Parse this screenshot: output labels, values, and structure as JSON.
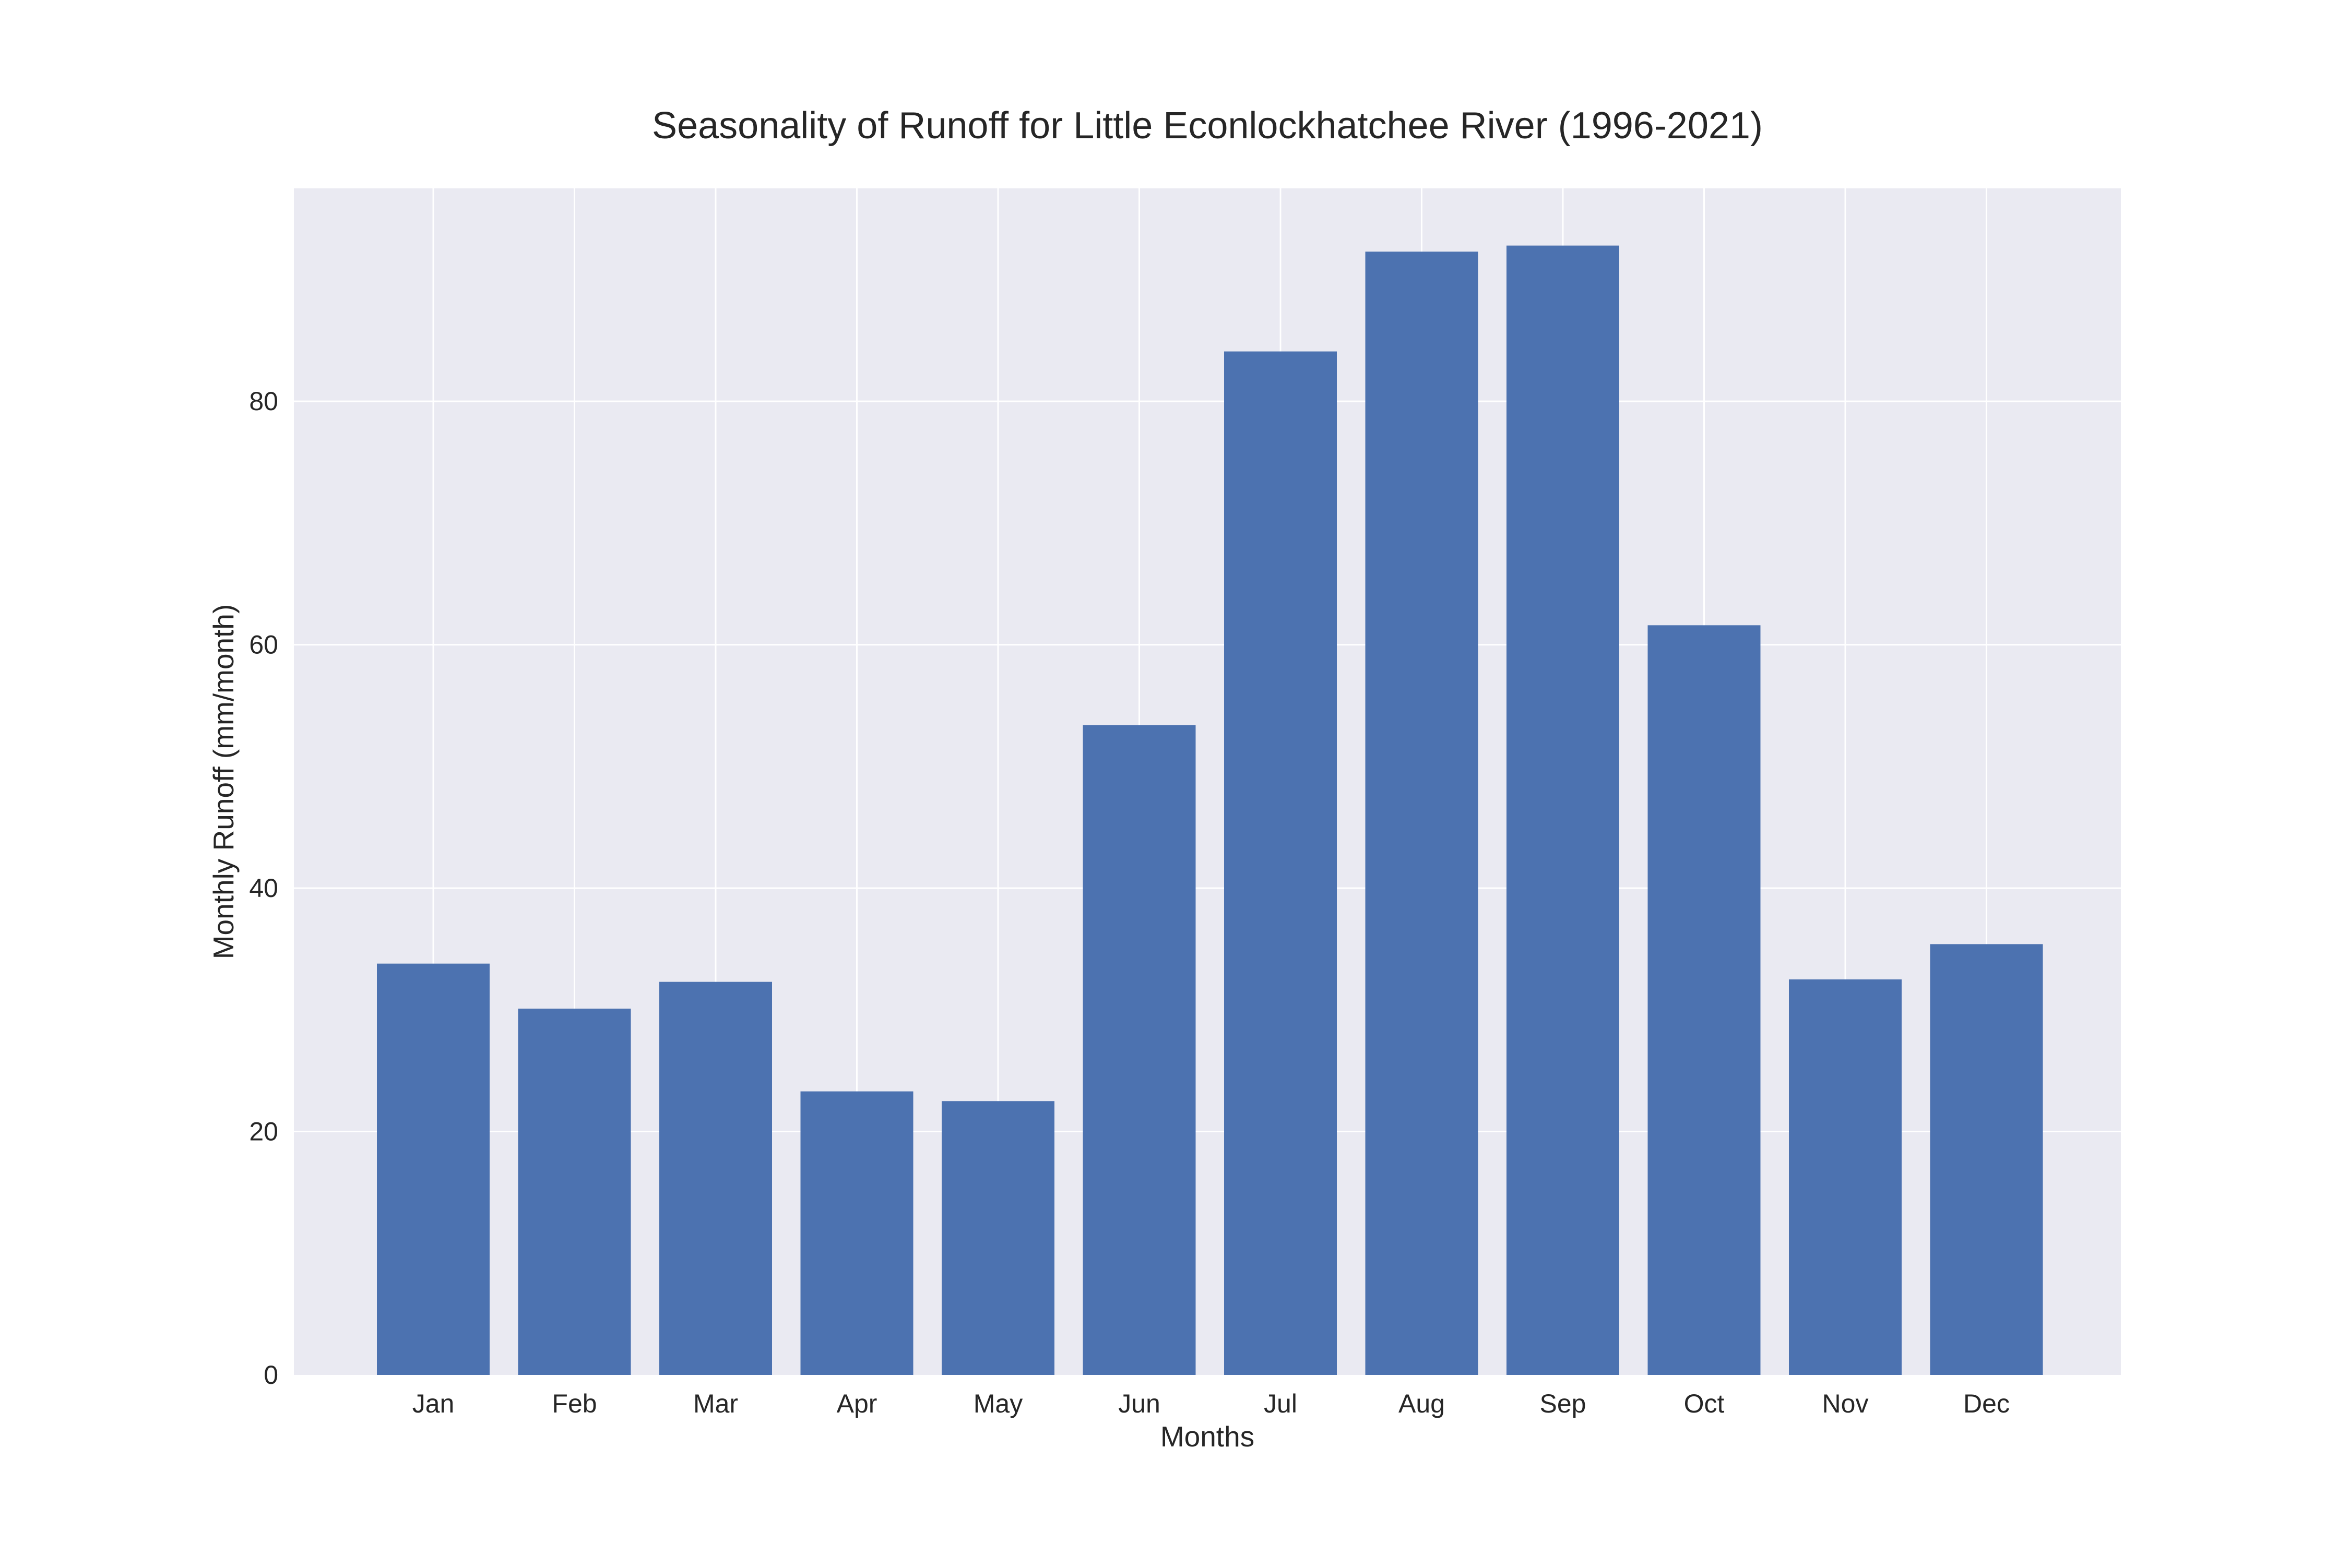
{
  "chart_data": {
    "type": "bar",
    "title": "Seasonality of Runoff for Little Econlockhatchee River (1996-2021)",
    "xlabel": "Months",
    "ylabel": "Monthly Runoff (mm/month)",
    "categories": [
      "Jan",
      "Feb",
      "Mar",
      "Apr",
      "May",
      "Jun",
      "Jul",
      "Aug",
      "Sep",
      "Oct",
      "Nov",
      "Dec"
    ],
    "values": [
      33.8,
      30.1,
      32.3,
      23.3,
      22.5,
      53.4,
      84.1,
      92.3,
      92.8,
      61.6,
      32.5,
      35.4
    ],
    "ylim": [
      0,
      97.5
    ],
    "yticks": [
      0,
      20,
      40,
      60,
      80
    ],
    "grid": true,
    "legend": "none",
    "colors": {
      "bar": "#4c72b0",
      "plot_background": "#eaeaf2",
      "grid": "#ffffff",
      "figure_background": "#ffffff",
      "text": "#262626"
    }
  }
}
